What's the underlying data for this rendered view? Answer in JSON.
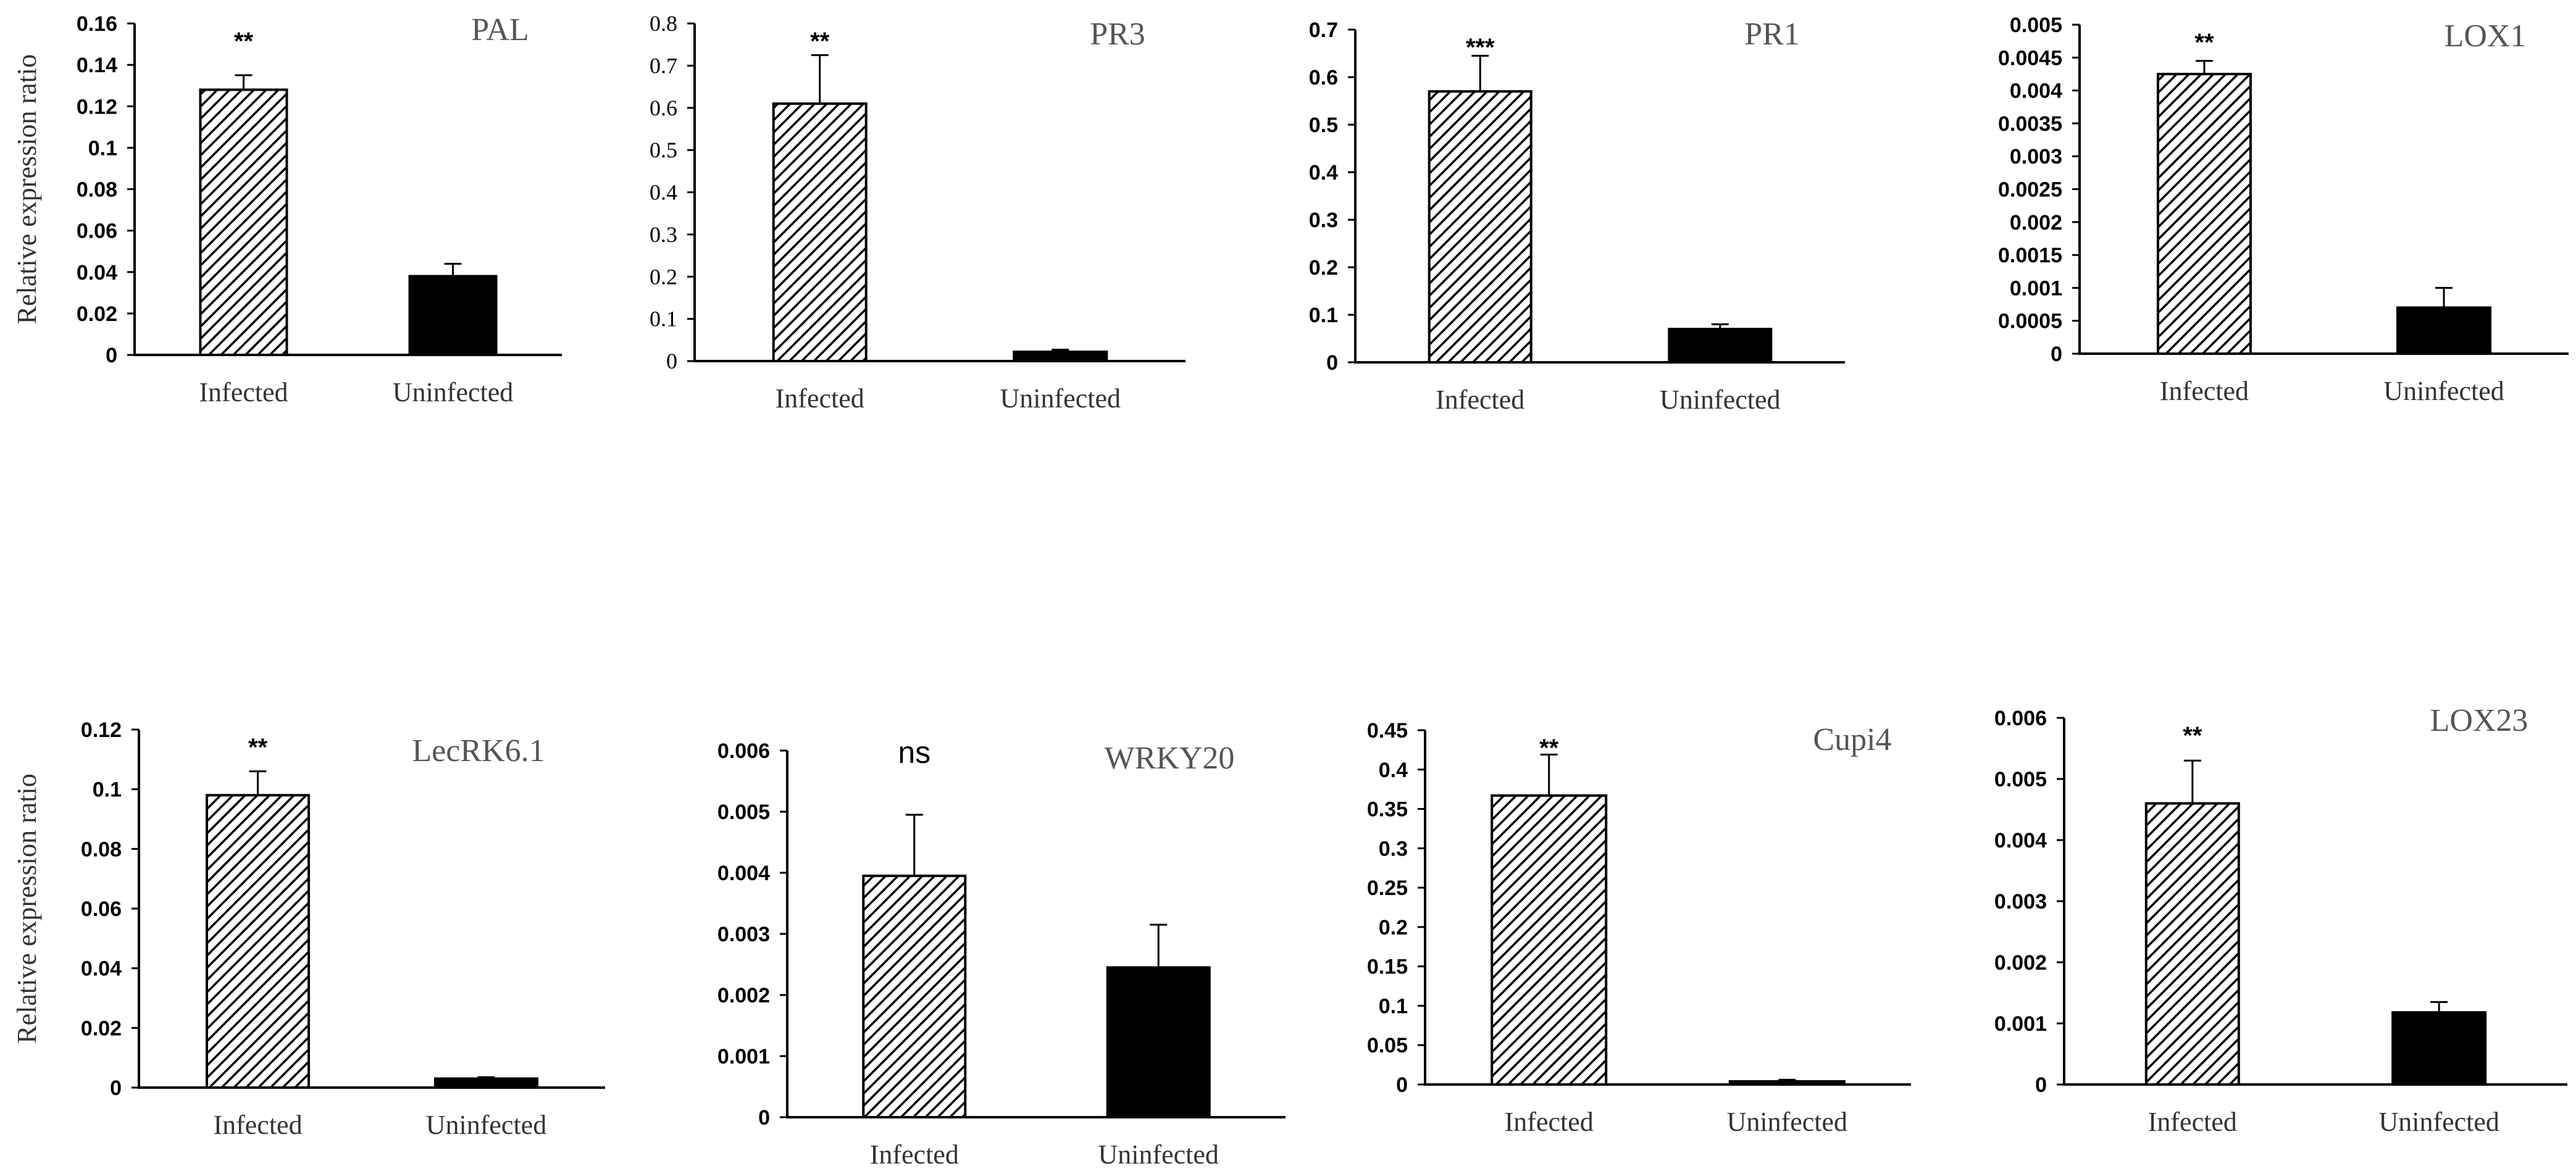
{
  "chart_data": [
    {
      "type": "bar",
      "title": "PAL",
      "ylabel": "Relative expression ratio",
      "categories": [
        "Infected",
        "Uninfected"
      ],
      "values": [
        0.128,
        0.038
      ],
      "errors": [
        0.007,
        0.006
      ],
      "significance": "**",
      "ylim": [
        0,
        0.16
      ],
      "yticks": [
        0,
        0.02,
        0.04,
        0.06,
        0.08,
        0.1,
        0.12,
        0.14,
        0.16
      ],
      "ytick_labels": [
        "0",
        "0.02",
        "0.04",
        "0.06",
        "0.08",
        "0.1",
        "0.12",
        "0.14",
        "0.16"
      ],
      "tick_style": "bold"
    },
    {
      "type": "bar",
      "title": "PR3",
      "ylabel": "",
      "categories": [
        "Infected",
        "Uninfected"
      ],
      "values": [
        0.61,
        0.022
      ],
      "errors": [
        0.115,
        0.005
      ],
      "significance": "**",
      "ylim": [
        0,
        0.8
      ],
      "yticks": [
        0,
        0.1,
        0.2,
        0.3,
        0.4,
        0.5,
        0.6,
        0.7,
        0.8
      ],
      "ytick_labels": [
        "0",
        "0.1",
        "0.2",
        "0.3",
        "0.4",
        "0.5",
        "0.6",
        "0.7",
        "0.8"
      ],
      "tick_style": "serif"
    },
    {
      "type": "bar",
      "title": "PR1",
      "ylabel": "",
      "categories": [
        "Infected",
        "Uninfected"
      ],
      "values": [
        0.57,
        0.07
      ],
      "errors": [
        0.075,
        0.01
      ],
      "significance": "***",
      "ylim": [
        0,
        0.7
      ],
      "yticks": [
        0,
        0.1,
        0.2,
        0.3,
        0.4,
        0.5,
        0.6,
        0.7
      ],
      "ytick_labels": [
        "0",
        "0.1",
        "0.2",
        "0.3",
        "0.4",
        "0.5",
        "0.6",
        "0.7"
      ],
      "tick_style": "bold"
    },
    {
      "type": "bar",
      "title": "LOX1",
      "ylabel": "",
      "categories": [
        "Infected",
        "Uninfected"
      ],
      "values": [
        0.00425,
        0.0007
      ],
      "errors": [
        0.0002,
        0.0003
      ],
      "significance": "**",
      "ylim": [
        0,
        0.005
      ],
      "yticks": [
        0,
        0.0005,
        0.001,
        0.0015,
        0.002,
        0.0025,
        0.003,
        0.0035,
        0.004,
        0.0045,
        0.005
      ],
      "ytick_labels": [
        "0",
        "0.0005",
        "0.001",
        "0.0015",
        "0.002",
        "0.0025",
        "0.003",
        "0.0035",
        "0.004",
        "0.0045",
        "0.005"
      ],
      "tick_style": "bold"
    },
    {
      "type": "bar",
      "title": "LecRK6.1",
      "ylabel": "Relative expression ratio",
      "categories": [
        "Infected",
        "Uninfected"
      ],
      "values": [
        0.098,
        0.003
      ],
      "errors": [
        0.008,
        0.0005
      ],
      "significance": "**",
      "ylim": [
        0,
        0.12
      ],
      "yticks": [
        0,
        0.02,
        0.04,
        0.06,
        0.08,
        0.1,
        0.12
      ],
      "ytick_labels": [
        "0",
        "0.02",
        "0.04",
        "0.06",
        "0.08",
        "0.1",
        "0.12"
      ],
      "tick_style": "bold"
    },
    {
      "type": "bar",
      "title": "WRKY20",
      "ylabel": "",
      "categories": [
        "Infected",
        "Uninfected"
      ],
      "values": [
        0.00395,
        0.00245
      ],
      "errors": [
        0.001,
        0.0007
      ],
      "significance": "ns",
      "ylim": [
        0,
        0.006
      ],
      "yticks": [
        0,
        0.001,
        0.002,
        0.003,
        0.004,
        0.005,
        0.006
      ],
      "ytick_labels": [
        "0",
        "0.001",
        "0.002",
        "0.003",
        "0.004",
        "0.005",
        "0.006"
      ],
      "tick_style": "sans"
    },
    {
      "type": "bar",
      "title": "Cupi4",
      "ylabel": "",
      "categories": [
        "Infected",
        "Uninfected"
      ],
      "values": [
        0.367,
        0.004
      ],
      "errors": [
        0.052,
        0.002
      ],
      "significance": "**",
      "ylim": [
        0,
        0.45
      ],
      "yticks": [
        0,
        0.05,
        0.1,
        0.15,
        0.2,
        0.25,
        0.3,
        0.35,
        0.4,
        0.45
      ],
      "ytick_labels": [
        "0",
        "0.05",
        "0.1",
        "0.15",
        "0.2",
        "0.25",
        "0.3",
        "0.35",
        "0.4",
        "0.45"
      ],
      "tick_style": "sans"
    },
    {
      "type": "bar",
      "title": "LOX23",
      "ylabel": "",
      "categories": [
        "Infected",
        "Uninfected"
      ],
      "values": [
        0.0046,
        0.00118
      ],
      "errors": [
        0.0007,
        0.00017
      ],
      "significance": "**",
      "ylim": [
        0,
        0.006
      ],
      "yticks": [
        0,
        0.001,
        0.002,
        0.003,
        0.004,
        0.005,
        0.006
      ],
      "ytick_labels": [
        "0",
        "0.001",
        "0.002",
        "0.003",
        "0.004",
        "0.005",
        "0.006"
      ],
      "tick_style": "sans"
    }
  ]
}
